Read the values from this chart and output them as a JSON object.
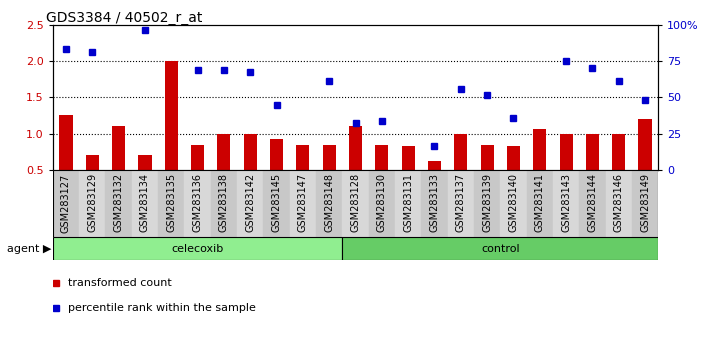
{
  "title": "GDS3384 / 40502_r_at",
  "categories": [
    "GSM283127",
    "GSM283129",
    "GSM283132",
    "GSM283134",
    "GSM283135",
    "GSM283136",
    "GSM283138",
    "GSM283142",
    "GSM283145",
    "GSM283147",
    "GSM283148",
    "GSM283128",
    "GSM283130",
    "GSM283131",
    "GSM283133",
    "GSM283137",
    "GSM283139",
    "GSM283140",
    "GSM283141",
    "GSM283143",
    "GSM283144",
    "GSM283146",
    "GSM283149"
  ],
  "bar_values": [
    1.25,
    0.7,
    1.1,
    0.7,
    2.0,
    0.85,
    1.0,
    1.0,
    0.92,
    0.85,
    0.85,
    1.1,
    0.85,
    0.83,
    0.62,
    1.0,
    0.85,
    0.83,
    1.07,
    1.0,
    1.0,
    1.0,
    1.2
  ],
  "scatter_values": [
    2.17,
    2.12,
    null,
    2.43,
    null,
    1.87,
    1.87,
    1.85,
    1.4,
    null,
    1.73,
    1.15,
    1.18,
    null,
    0.83,
    1.62,
    1.53,
    1.22,
    null,
    2.0,
    1.9,
    1.73,
    1.47
  ],
  "celecoxib_count": 11,
  "control_count": 12,
  "bar_color": "#CC0000",
  "scatter_color": "#0000CC",
  "celecoxib_color": "#90EE90",
  "control_color": "#66CC66",
  "ylim": [
    0.5,
    2.5
  ],
  "yticks_left": [
    0.5,
    1.0,
    1.5,
    2.0,
    2.5
  ],
  "ytick_labels_left": [
    "0.5",
    "1.0",
    "1.5",
    "2.0",
    "2.5"
  ],
  "yticks_right_pct": [
    0,
    25,
    50,
    75,
    100
  ],
  "ytick_labels_right": [
    "0",
    "25",
    "50",
    "75",
    "100%"
  ],
  "hlines": [
    1.0,
    1.5,
    2.0
  ],
  "group_labels": [
    "celecoxib",
    "control"
  ],
  "legend_items": [
    "transformed count",
    "percentile rank within the sample"
  ],
  "background_color": "#ffffff",
  "title_fontsize": 10,
  "tick_fontsize": 7,
  "bar_width": 0.5
}
